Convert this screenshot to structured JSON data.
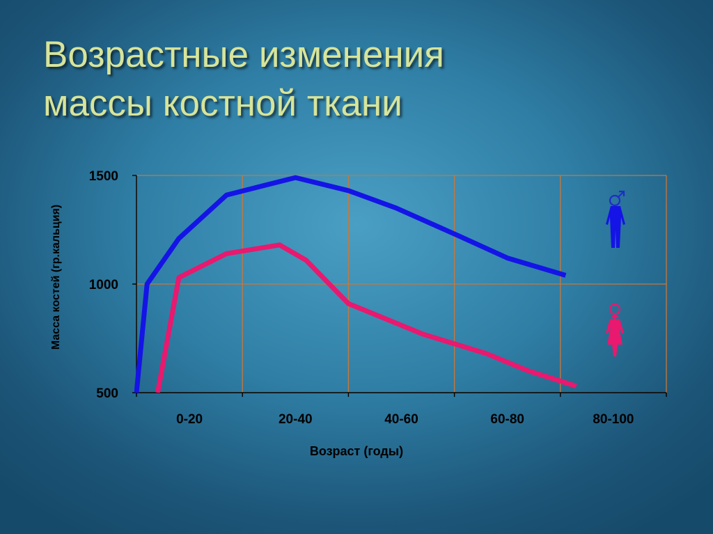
{
  "slide": {
    "title_line1": "Возрастные изменения",
    "title_line2": "массы костной ткани"
  },
  "chart_data": {
    "type": "line",
    "title": "Возрастные изменения массы костной ткани",
    "xlabel": "Возраст (годы)",
    "ylabel": "Масса костей (гр.кальция)",
    "categories": [
      "0-20",
      "20-40",
      "40-60",
      "60-80",
      "80-100"
    ],
    "xlim": [
      0,
      100
    ],
    "ylim": [
      500,
      1500
    ],
    "yticks": [
      500,
      1000,
      1500
    ],
    "grid": true,
    "series": [
      {
        "symbol": "male",
        "color": "#1414e6",
        "x": [
          0,
          2,
          8,
          17,
          30,
          40,
          49,
          61,
          70,
          81
        ],
        "y": [
          500,
          1000,
          1210,
          1410,
          1490,
          1430,
          1350,
          1220,
          1120,
          1040
        ]
      },
      {
        "symbol": "female",
        "color": "#e8196e",
        "x": [
          4,
          8,
          17,
          27,
          32,
          40,
          54,
          66,
          74,
          83
        ],
        "y": [
          500,
          1030,
          1140,
          1180,
          1110,
          910,
          770,
          680,
          600,
          530
        ]
      }
    ]
  }
}
